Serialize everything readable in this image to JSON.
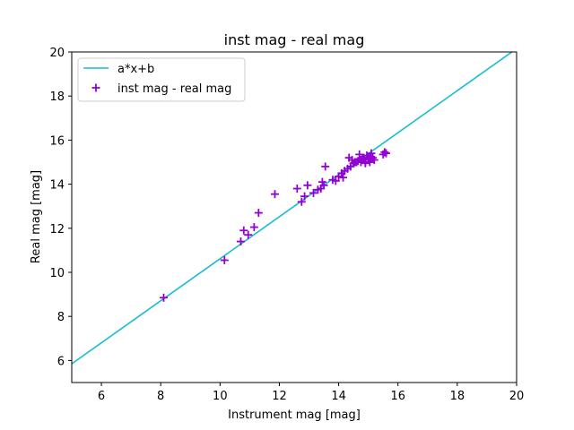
{
  "chart_data": {
    "type": "scatter",
    "title": "inst mag - real mag",
    "xlabel": "Instrument mag [mag]",
    "ylabel": "Real mag [mag]",
    "xlim": [
      5,
      20
    ],
    "ylim": [
      5,
      20
    ],
    "xticks": [
      6,
      8,
      10,
      12,
      14,
      16,
      18,
      20
    ],
    "yticks": [
      6,
      8,
      10,
      12,
      14,
      16,
      18,
      20
    ],
    "grid": false,
    "legend_position": "upper left",
    "series": [
      {
        "name": "a*x+b",
        "type": "line",
        "color": "#17becf",
        "x": [
          5,
          20
        ],
        "y": [
          5.85,
          20.15
        ]
      },
      {
        "name": "inst mag - real mag",
        "type": "scatter",
        "marker": "+",
        "color": "#9400d3",
        "x": [
          8.1,
          10.15,
          10.7,
          10.8,
          10.95,
          11.15,
          11.3,
          11.85,
          12.6,
          12.75,
          12.85,
          12.95,
          13.15,
          13.3,
          13.4,
          13.45,
          13.5,
          13.55,
          13.8,
          13.9,
          14.0,
          14.1,
          14.15,
          14.2,
          14.3,
          14.35,
          14.4,
          14.45,
          14.5,
          14.55,
          14.6,
          14.65,
          14.7,
          14.75,
          14.75,
          14.8,
          14.85,
          14.9,
          14.9,
          14.95,
          15.0,
          15.0,
          15.05,
          15.05,
          15.1,
          15.1,
          15.15,
          15.2,
          15.5,
          15.55,
          15.6
        ],
        "y": [
          8.85,
          10.55,
          11.4,
          11.9,
          11.7,
          12.05,
          12.7,
          13.55,
          13.8,
          13.2,
          13.45,
          13.95,
          13.6,
          13.75,
          13.8,
          14.1,
          13.95,
          14.8,
          14.2,
          14.15,
          14.35,
          14.5,
          14.3,
          14.6,
          14.7,
          15.2,
          14.8,
          15.1,
          14.95,
          15.0,
          15.0,
          15.05,
          15.35,
          15.0,
          15.1,
          15.15,
          15.2,
          15.0,
          14.95,
          15.3,
          15.1,
          15.2,
          15.25,
          15.0,
          15.15,
          15.4,
          15.2,
          15.1,
          15.35,
          15.45,
          15.4
        ]
      }
    ]
  }
}
